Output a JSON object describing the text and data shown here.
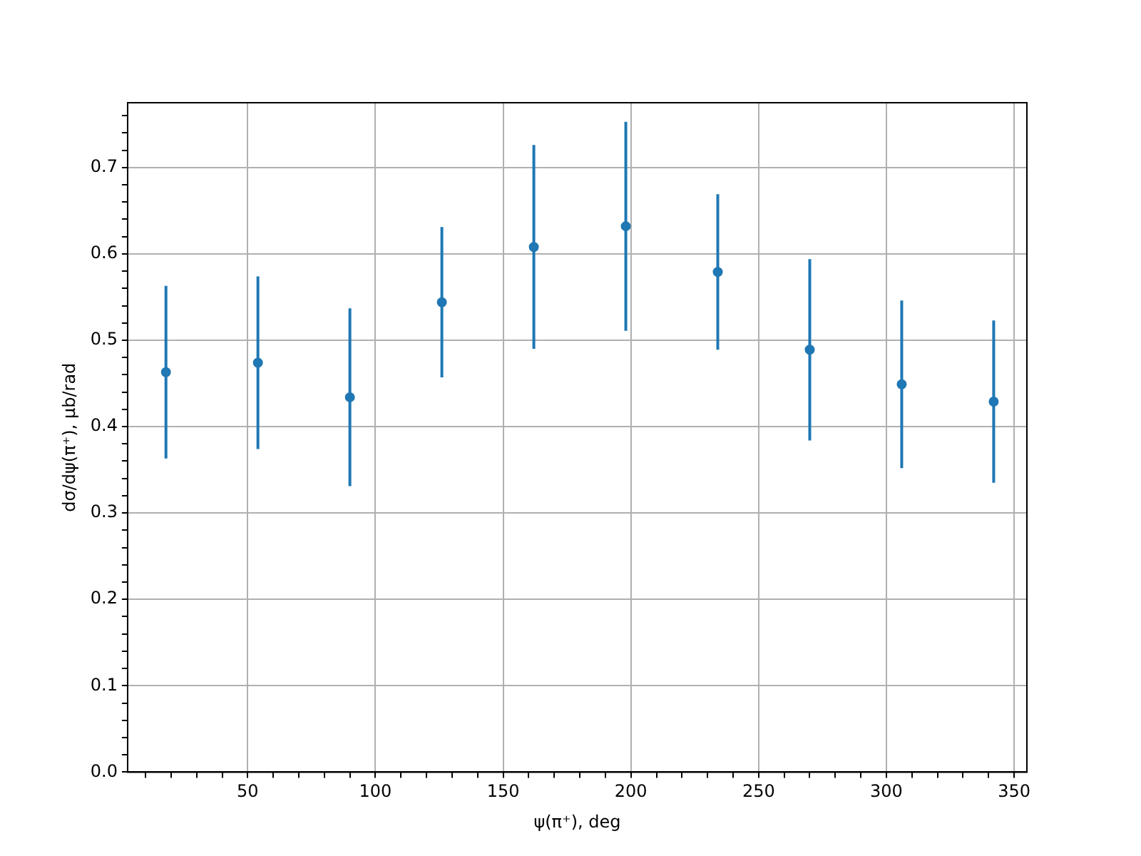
{
  "chart_data": {
    "type": "scatter",
    "xlabel": "ψ(π⁺), deg",
    "ylabel": "dσ/dψ(π⁺), μb/rad",
    "x": [
      18,
      54,
      90,
      126,
      162,
      198,
      234,
      270,
      306,
      342
    ],
    "series": [
      {
        "color": "#1f77b4",
        "values": [
          0.463,
          0.474,
          0.434,
          0.544,
          0.608,
          0.632,
          0.579,
          0.489,
          0.449,
          0.429
        ],
        "errors": [
          0.1,
          0.1,
          0.103,
          0.087,
          0.118,
          0.121,
          0.09,
          0.105,
          0.097,
          0.094
        ]
      }
    ],
    "xlim": [
      3,
      355
    ],
    "ylim": [
      0,
      0.775
    ],
    "xticks": [
      {
        "value": 10,
        "label": null
      },
      {
        "value": 20,
        "label": null
      },
      {
        "value": 30,
        "label": null
      },
      {
        "value": 40,
        "label": null
      },
      50,
      {
        "value": 60,
        "label": null
      },
      {
        "value": 70,
        "label": null
      },
      {
        "value": 80,
        "label": null
      },
      {
        "value": 90,
        "label": null
      },
      100,
      {
        "value": 110,
        "label": null
      },
      {
        "value": 120,
        "label": null
      },
      {
        "value": 130,
        "label": null
      },
      {
        "value": 140,
        "label": null
      },
      150,
      {
        "value": 160,
        "label": null
      },
      {
        "value": 170,
        "label": null
      },
      {
        "value": 180,
        "label": null
      },
      {
        "value": 190,
        "label": null
      },
      200,
      {
        "value": 210,
        "label": null
      },
      {
        "value": 220,
        "label": null
      },
      {
        "value": 230,
        "label": null
      },
      {
        "value": 240,
        "label": null
      },
      250,
      {
        "value": 260,
        "label": null
      },
      {
        "value": 270,
        "label": null
      },
      {
        "value": 280,
        "label": null
      },
      {
        "value": 290,
        "label": null
      },
      300,
      {
        "value": 310,
        "label": null
      },
      {
        "value": 320,
        "label": null
      },
      {
        "value": 330,
        "label": null
      },
      {
        "value": 340,
        "label": null
      },
      350
    ],
    "yticks": [
      {
        "value": 0,
        "label": "0.0"
      },
      {
        "value": 0.02,
        "label": null
      },
      {
        "value": 0.04,
        "label": null
      },
      {
        "value": 0.06,
        "label": null
      },
      {
        "value": 0.08,
        "label": null
      },
      0.1,
      {
        "value": 0.12,
        "label": null
      },
      {
        "value": 0.14,
        "label": null
      },
      {
        "value": 0.16,
        "label": null
      },
      {
        "value": 0.18,
        "label": null
      },
      0.2,
      {
        "value": 0.22,
        "label": null
      },
      {
        "value": 0.24,
        "label": null
      },
      {
        "value": 0.26,
        "label": null
      },
      {
        "value": 0.28,
        "label": null
      },
      0.3,
      {
        "value": 0.32,
        "label": null
      },
      {
        "value": 0.34,
        "label": null
      },
      {
        "value": 0.36,
        "label": null
      },
      {
        "value": 0.38,
        "label": null
      },
      0.4,
      {
        "value": 0.42,
        "label": null
      },
      {
        "value": 0.44,
        "label": null
      },
      {
        "value": 0.46,
        "label": null
      },
      {
        "value": 0.48,
        "label": null
      },
      0.5,
      {
        "value": 0.52,
        "label": null
      },
      {
        "value": 0.54,
        "label": null
      },
      {
        "value": 0.56,
        "label": null
      },
      {
        "value": 0.58,
        "label": null
      },
      0.6,
      {
        "value": 0.62,
        "label": null
      },
      {
        "value": 0.64,
        "label": null
      },
      {
        "value": 0.66,
        "label": null
      },
      {
        "value": 0.68,
        "label": null
      },
      0.7,
      {
        "value": 0.72,
        "label": null
      },
      {
        "value": 0.74,
        "label": null
      },
      {
        "value": 0.76,
        "label": null
      }
    ],
    "grid": true,
    "marker": "circle"
  }
}
